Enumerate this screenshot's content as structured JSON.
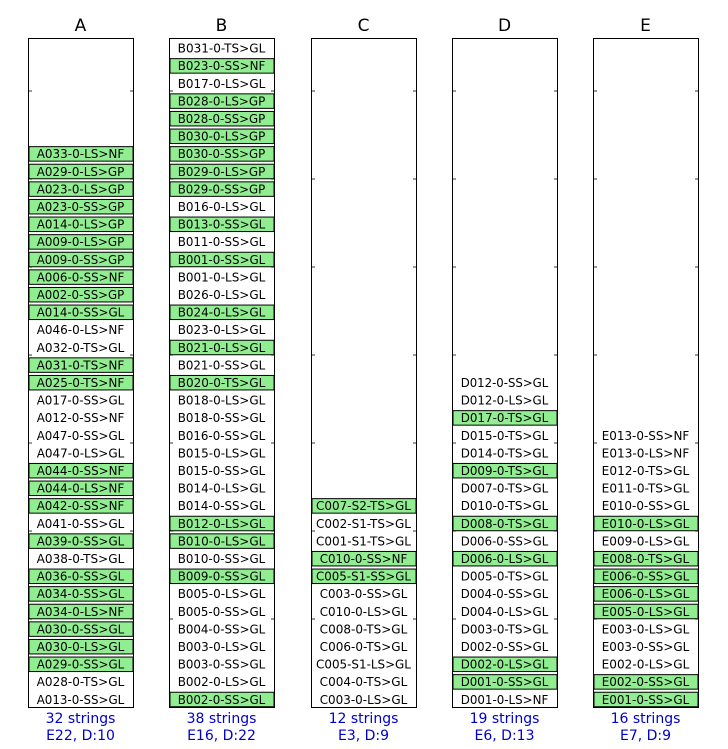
{
  "colors": {
    "highlight": "#90ee90",
    "footer_text": "#0000cc",
    "frame": "#000000"
  },
  "chart_data": {
    "type": "table",
    "columns": [
      {
        "title": "A",
        "strings_label": "32 strings",
        "summary_label": "E22, D:10",
        "items": [
          {
            "text": "A033-0-LS>NF",
            "highlighted": true
          },
          {
            "text": "A029-0-LS>GP",
            "highlighted": true
          },
          {
            "text": "A023-0-LS>GP",
            "highlighted": true
          },
          {
            "text": "A023-0-SS>GP",
            "highlighted": true
          },
          {
            "text": "A014-0-LS>GP",
            "highlighted": true
          },
          {
            "text": "A009-0-LS>GP",
            "highlighted": true
          },
          {
            "text": "A009-0-SS>GP",
            "highlighted": true
          },
          {
            "text": "A006-0-SS>NF",
            "highlighted": true
          },
          {
            "text": "A002-0-SS>GP",
            "highlighted": true
          },
          {
            "text": "A014-0-SS>GL",
            "highlighted": true
          },
          {
            "text": "A046-0-LS>NF",
            "highlighted": false
          },
          {
            "text": "A032-0-TS>GL",
            "highlighted": false
          },
          {
            "text": "A031-0-TS>NF",
            "highlighted": true
          },
          {
            "text": "A025-0-TS>NF",
            "highlighted": true
          },
          {
            "text": "A017-0-SS>GL",
            "highlighted": false
          },
          {
            "text": "A012-0-SS>NF",
            "highlighted": false
          },
          {
            "text": "A047-0-SS>GL",
            "highlighted": false
          },
          {
            "text": "A047-0-LS>GL",
            "highlighted": false
          },
          {
            "text": "A044-0-SS>NF",
            "highlighted": true
          },
          {
            "text": "A044-0-LS>NF",
            "highlighted": true
          },
          {
            "text": "A042-0-SS>NF",
            "highlighted": true
          },
          {
            "text": "A041-0-SS>GL",
            "highlighted": false
          },
          {
            "text": "A039-0-SS>GL",
            "highlighted": true
          },
          {
            "text": "A038-0-TS>GL",
            "highlighted": false
          },
          {
            "text": "A036-0-SS>GL",
            "highlighted": true
          },
          {
            "text": "A034-0-SS>GL",
            "highlighted": true
          },
          {
            "text": "A034-0-LS>NF",
            "highlighted": true
          },
          {
            "text": "A030-0-SS>GL",
            "highlighted": true
          },
          {
            "text": "A030-0-LS>GL",
            "highlighted": true
          },
          {
            "text": "A029-0-SS>GL",
            "highlighted": true
          },
          {
            "text": "A028-0-TS>GL",
            "highlighted": false
          },
          {
            "text": "A013-0-SS>GL",
            "highlighted": false
          }
        ]
      },
      {
        "title": "B",
        "strings_label": "38 strings",
        "summary_label": "E16, D:22",
        "items": [
          {
            "text": "B031-0-TS>GL",
            "highlighted": false
          },
          {
            "text": "B023-0-SS>NF",
            "highlighted": true
          },
          {
            "text": "B017-0-LS>GL",
            "highlighted": false
          },
          {
            "text": "B028-0-LS>GP",
            "highlighted": true
          },
          {
            "text": "B028-0-SS>GP",
            "highlighted": true
          },
          {
            "text": "B030-0-LS>GP",
            "highlighted": true
          },
          {
            "text": "B030-0-SS>GP",
            "highlighted": true
          },
          {
            "text": "B029-0-LS>GP",
            "highlighted": true
          },
          {
            "text": "B029-0-SS>GP",
            "highlighted": true
          },
          {
            "text": "B016-0-LS>GL",
            "highlighted": false
          },
          {
            "text": "B013-0-SS>GL",
            "highlighted": true
          },
          {
            "text": "B011-0-SS>GL",
            "highlighted": false
          },
          {
            "text": "B001-0-SS>GL",
            "highlighted": true
          },
          {
            "text": "B001-0-LS>GL",
            "highlighted": false
          },
          {
            "text": "B026-0-LS>GL",
            "highlighted": false
          },
          {
            "text": "B024-0-LS>GL",
            "highlighted": true
          },
          {
            "text": "B023-0-LS>GL",
            "highlighted": false
          },
          {
            "text": "B021-0-LS>GL",
            "highlighted": true
          },
          {
            "text": "B021-0-SS>GL",
            "highlighted": false
          },
          {
            "text": "B020-0-TS>GL",
            "highlighted": true
          },
          {
            "text": "B018-0-LS>GL",
            "highlighted": false
          },
          {
            "text": "B018-0-SS>GL",
            "highlighted": false
          },
          {
            "text": "B016-0-SS>GL",
            "highlighted": false
          },
          {
            "text": "B015-0-LS>GL",
            "highlighted": false
          },
          {
            "text": "B015-0-SS>GL",
            "highlighted": false
          },
          {
            "text": "B014-0-LS>GL",
            "highlighted": false
          },
          {
            "text": "B014-0-SS>GL",
            "highlighted": false
          },
          {
            "text": "B012-0-LS>GL",
            "highlighted": true
          },
          {
            "text": "B010-0-LS>GL",
            "highlighted": true
          },
          {
            "text": "B010-0-SS>GL",
            "highlighted": false
          },
          {
            "text": "B009-0-SS>GL",
            "highlighted": true
          },
          {
            "text": "B005-0-LS>GL",
            "highlighted": false
          },
          {
            "text": "B005-0-SS>GL",
            "highlighted": false
          },
          {
            "text": "B004-0-SS>GL",
            "highlighted": false
          },
          {
            "text": "B003-0-LS>GL",
            "highlighted": false
          },
          {
            "text": "B003-0-SS>GL",
            "highlighted": false
          },
          {
            "text": "B002-0-LS>GL",
            "highlighted": false
          },
          {
            "text": "B002-0-SS>GL",
            "highlighted": true
          }
        ]
      },
      {
        "title": "C",
        "strings_label": "12 strings",
        "summary_label": "E3, D:9",
        "items": [
          {
            "text": "C007-S2-TS>GL",
            "highlighted": true
          },
          {
            "text": "C002-S1-TS>GL",
            "highlighted": false
          },
          {
            "text": "C001-S1-TS>GL",
            "highlighted": false
          },
          {
            "text": "C010-0-SS>NF",
            "highlighted": true
          },
          {
            "text": "C005-S1-SS>GL",
            "highlighted": true
          },
          {
            "text": "C003-0-SS>GL",
            "highlighted": false
          },
          {
            "text": "C010-0-LS>GL",
            "highlighted": false
          },
          {
            "text": "C008-0-TS>GL",
            "highlighted": false
          },
          {
            "text": "C006-0-TS>GL",
            "highlighted": false
          },
          {
            "text": "C005-S1-LS>GL",
            "highlighted": false
          },
          {
            "text": "C004-0-TS>GL",
            "highlighted": false
          },
          {
            "text": "C003-0-LS>GL",
            "highlighted": false
          }
        ]
      },
      {
        "title": "D",
        "strings_label": "19 strings",
        "summary_label": "E6, D:13",
        "items": [
          {
            "text": "D012-0-SS>GL",
            "highlighted": false
          },
          {
            "text": "D012-0-LS>GL",
            "highlighted": false
          },
          {
            "text": "D017-0-TS>GL",
            "highlighted": true
          },
          {
            "text": "D015-0-TS>GL",
            "highlighted": false
          },
          {
            "text": "D014-0-TS>GL",
            "highlighted": false
          },
          {
            "text": "D009-0-TS>GL",
            "highlighted": true
          },
          {
            "text": "D007-0-TS>GL",
            "highlighted": false
          },
          {
            "text": "D010-0-TS>GL",
            "highlighted": false
          },
          {
            "text": "D008-0-TS>GL",
            "highlighted": true
          },
          {
            "text": "D006-0-SS>GL",
            "highlighted": false
          },
          {
            "text": "D006-0-LS>GL",
            "highlighted": true
          },
          {
            "text": "D005-0-TS>GL",
            "highlighted": false
          },
          {
            "text": "D004-0-SS>GL",
            "highlighted": false
          },
          {
            "text": "D004-0-LS>GL",
            "highlighted": false
          },
          {
            "text": "D003-0-TS>GL",
            "highlighted": false
          },
          {
            "text": "D002-0-SS>GL",
            "highlighted": false
          },
          {
            "text": "D002-0-LS>GL",
            "highlighted": true
          },
          {
            "text": "D001-0-SS>GL",
            "highlighted": true
          },
          {
            "text": "D001-0-LS>NF",
            "highlighted": false
          }
        ]
      },
      {
        "title": "E",
        "strings_label": "16 strings",
        "summary_label": "E7, D:9",
        "items": [
          {
            "text": "E013-0-SS>NF",
            "highlighted": false
          },
          {
            "text": "E013-0-LS>NF",
            "highlighted": false
          },
          {
            "text": "E012-0-TS>GL",
            "highlighted": false
          },
          {
            "text": "E011-0-TS>GL",
            "highlighted": false
          },
          {
            "text": "E010-0-SS>GL",
            "highlighted": false
          },
          {
            "text": "E010-0-LS>GL",
            "highlighted": true
          },
          {
            "text": "E009-0-LS>GL",
            "highlighted": false
          },
          {
            "text": "E008-0-TS>GL",
            "highlighted": true
          },
          {
            "text": "E006-0-SS>GL",
            "highlighted": true
          },
          {
            "text": "E006-0-LS>GL",
            "highlighted": true
          },
          {
            "text": "E005-0-LS>GL",
            "highlighted": true
          },
          {
            "text": "E003-0-LS>GL",
            "highlighted": false
          },
          {
            "text": "E003-0-SS>GL",
            "highlighted": false
          },
          {
            "text": "E002-0-LS>GL",
            "highlighted": false
          },
          {
            "text": "E002-0-SS>GL",
            "highlighted": true
          },
          {
            "text": "E001-0-SS>GL",
            "highlighted": true
          }
        ]
      }
    ]
  }
}
